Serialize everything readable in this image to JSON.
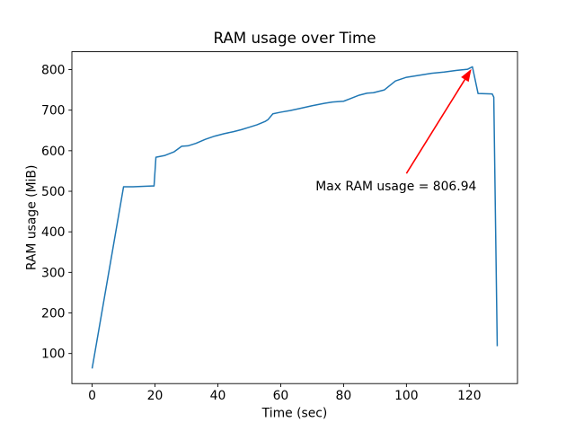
{
  "chart_data": {
    "type": "line",
    "title": "RAM usage over Time",
    "xlabel": "Time (sec)",
    "ylabel": "RAM usage (MiB)",
    "xlim": [
      -6.445,
      135.345
    ],
    "ylim": [
      25.8,
      844.1
    ],
    "xticks": [
      0,
      20,
      40,
      60,
      80,
      100,
      120
    ],
    "yticks": [
      100,
      200,
      300,
      400,
      500,
      600,
      700,
      800
    ],
    "grid": false,
    "legend": null,
    "background": "#ffffff",
    "line_color": "#1f77b4",
    "line_width": 1.5,
    "series": [
      {
        "name": "RAM usage",
        "x": [
          0,
          10,
          13,
          19,
          19.7,
          20.3,
          23,
          26,
          28.5,
          30.5,
          33,
          36,
          39,
          42,
          45,
          47.5,
          50,
          52.5,
          55,
          56,
          57.5,
          60,
          63,
          66,
          70,
          74,
          76.5,
          80,
          82,
          85,
          87.5,
          89.5,
          93,
          96.5,
          100,
          104,
          108,
          112,
          116,
          119.5,
          121,
          122.8,
          127.3,
          127.8,
          128.9
        ],
        "y": [
          63,
          511,
          511,
          513,
          513,
          584,
          588,
          597,
          611,
          612,
          618,
          628,
          636,
          642,
          647,
          652,
          658,
          664,
          672,
          677,
          691,
          695,
          699,
          704,
          711,
          717,
          720,
          722,
          728,
          737,
          742,
          743,
          750,
          772,
          781,
          786,
          791,
          794,
          798,
          801,
          806.94,
          741,
          740,
          732,
          118
        ]
      }
    ],
    "annotation": {
      "label": "Max RAM usage = 806.94",
      "max_value": 806.94,
      "peak_time": 121,
      "color": "#ff0000",
      "text_x": 71.1,
      "text_y": 502,
      "arrow_tail": [
        100,
        544
      ],
      "arrow_tip": [
        120.4,
        798
      ]
    }
  }
}
